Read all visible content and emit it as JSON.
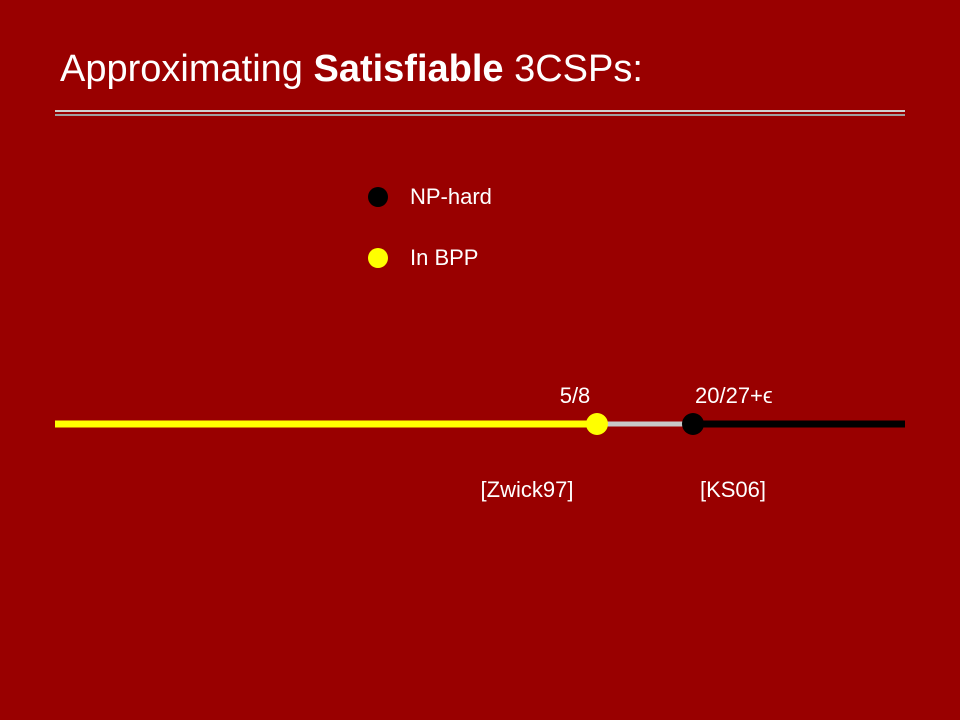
{
  "title": {
    "prefix": "Approximating ",
    "bold": "Satisfiable",
    "suffix": " 3CSPs:"
  },
  "legend": [
    {
      "label": "NP-hard",
      "color": "#000000"
    },
    {
      "label": "In BPP",
      "color": "#ffff00"
    }
  ],
  "markers": [
    {
      "label": "5/8",
      "citation": "[Zwick97]",
      "color": "#ffff00"
    },
    {
      "label": "20/27+ϵ",
      "citation": "[KS06]",
      "color": "#000000"
    }
  ]
}
